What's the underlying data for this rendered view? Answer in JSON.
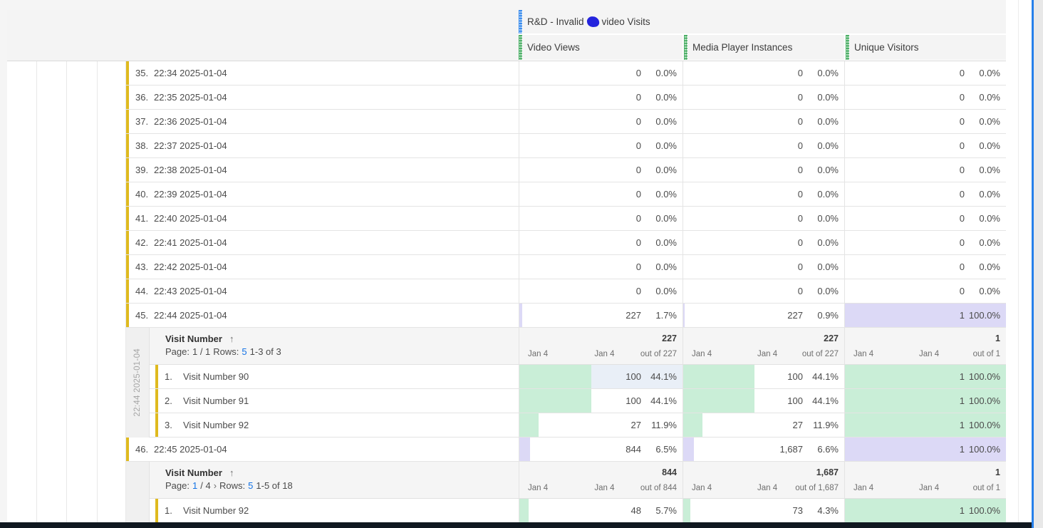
{
  "palette": {
    "accent_blue": "#2680eb",
    "accent_green": "#3aa757",
    "accent_yellow": "#dfba1f",
    "link_blue": "#1473e6",
    "fill_green": "#c9eed7",
    "fill_lavender": "#dcd9f6",
    "bg_selected": "#e9eff7",
    "redaction_blue": "#2424dd",
    "dark_bar": "#101820"
  },
  "header": {
    "segment_title_prefix": "R&D - Invalid",
    "segment_title_suffix": "video Visits",
    "columns": [
      "Video Views",
      "Media Player Instances",
      "Unique Visitors"
    ]
  },
  "rows": [
    {
      "type": "data",
      "num": "35.",
      "label": "22:34 2025-01-04",
      "cells": [
        {
          "value": "0",
          "pct": "0.0%"
        },
        {
          "value": "0",
          "pct": "0.0%"
        },
        {
          "value": "0",
          "pct": "0.0%"
        }
      ]
    },
    {
      "type": "data",
      "num": "36.",
      "label": "22:35 2025-01-04",
      "cells": [
        {
          "value": "0",
          "pct": "0.0%"
        },
        {
          "value": "0",
          "pct": "0.0%"
        },
        {
          "value": "0",
          "pct": "0.0%"
        }
      ]
    },
    {
      "type": "data",
      "num": "37.",
      "label": "22:36 2025-01-04",
      "cells": [
        {
          "value": "0",
          "pct": "0.0%"
        },
        {
          "value": "0",
          "pct": "0.0%"
        },
        {
          "value": "0",
          "pct": "0.0%"
        }
      ]
    },
    {
      "type": "data",
      "num": "38.",
      "label": "22:37 2025-01-04",
      "cells": [
        {
          "value": "0",
          "pct": "0.0%"
        },
        {
          "value": "0",
          "pct": "0.0%"
        },
        {
          "value": "0",
          "pct": "0.0%"
        }
      ]
    },
    {
      "type": "data",
      "num": "39.",
      "label": "22:38 2025-01-04",
      "cells": [
        {
          "value": "0",
          "pct": "0.0%"
        },
        {
          "value": "0",
          "pct": "0.0%"
        },
        {
          "value": "0",
          "pct": "0.0%"
        }
      ]
    },
    {
      "type": "data",
      "num": "40.",
      "label": "22:39 2025-01-04",
      "cells": [
        {
          "value": "0",
          "pct": "0.0%"
        },
        {
          "value": "0",
          "pct": "0.0%"
        },
        {
          "value": "0",
          "pct": "0.0%"
        }
      ]
    },
    {
      "type": "data",
      "num": "41.",
      "label": "22:40 2025-01-04",
      "cells": [
        {
          "value": "0",
          "pct": "0.0%"
        },
        {
          "value": "0",
          "pct": "0.0%"
        },
        {
          "value": "0",
          "pct": "0.0%"
        }
      ]
    },
    {
      "type": "data",
      "num": "42.",
      "label": "22:41 2025-01-04",
      "cells": [
        {
          "value": "0",
          "pct": "0.0%"
        },
        {
          "value": "0",
          "pct": "0.0%"
        },
        {
          "value": "0",
          "pct": "0.0%"
        }
      ]
    },
    {
      "type": "data",
      "num": "43.",
      "label": "22:42 2025-01-04",
      "cells": [
        {
          "value": "0",
          "pct": "0.0%"
        },
        {
          "value": "0",
          "pct": "0.0%"
        },
        {
          "value": "0",
          "pct": "0.0%"
        }
      ]
    },
    {
      "type": "data",
      "num": "44.",
      "label": "22:43 2025-01-04",
      "cells": [
        {
          "value": "0",
          "pct": "0.0%"
        },
        {
          "value": "0",
          "pct": "0.0%"
        },
        {
          "value": "0",
          "pct": "0.0%"
        }
      ]
    },
    {
      "type": "data",
      "num": "45.",
      "label": "22:44 2025-01-04",
      "cells": [
        {
          "value": "227",
          "pct": "1.7%",
          "bar": 0.017,
          "bar_color": "lavender"
        },
        {
          "value": "227",
          "pct": "0.9%",
          "bar": 0.009,
          "bar_color": "lavender"
        },
        {
          "value": "1",
          "pct": "100.0%",
          "bg": "lavender"
        }
      ]
    },
    {
      "type": "breakdown",
      "strip_label": "22:44 2025-01-04",
      "dimension": "Visit Number",
      "sort_icon": "↑",
      "pagination": [
        {
          "text": "Page:",
          "style": "plain"
        },
        {
          "text": "1 / 1",
          "style": "plain"
        },
        {
          "text": "Rows:",
          "style": "plain"
        },
        {
          "text": "5",
          "style": "link"
        },
        {
          "text": "1-3 of 3",
          "style": "plain"
        }
      ],
      "axis_labels": [
        "Jan 4",
        "Jan 4"
      ],
      "totals": [
        {
          "value": "227",
          "out_of": "out of 227"
        },
        {
          "value": "227",
          "out_of": "out of 227"
        },
        {
          "value": "1",
          "out_of": "out of 1"
        }
      ],
      "rows": [
        {
          "num": "1.",
          "label": "Visit Number 90",
          "cells": [
            {
              "value": "100",
              "pct": "44.1%",
              "bar": 0.441,
              "bar_color": "green",
              "bg": "selected"
            },
            {
              "value": "100",
              "pct": "44.1%",
              "bar": 0.441,
              "bar_color": "green"
            },
            {
              "value": "1",
              "pct": "100.0%",
              "bg": "green"
            }
          ]
        },
        {
          "num": "2.",
          "label": "Visit Number 91",
          "cells": [
            {
              "value": "100",
              "pct": "44.1%",
              "bar": 0.441,
              "bar_color": "green"
            },
            {
              "value": "100",
              "pct": "44.1%",
              "bar": 0.441,
              "bar_color": "green"
            },
            {
              "value": "1",
              "pct": "100.0%",
              "bg": "green"
            }
          ]
        },
        {
          "num": "3.",
          "label": "Visit Number 92",
          "cells": [
            {
              "value": "27",
              "pct": "11.9%",
              "bar": 0.119,
              "bar_color": "green"
            },
            {
              "value": "27",
              "pct": "11.9%",
              "bar": 0.119,
              "bar_color": "green"
            },
            {
              "value": "1",
              "pct": "100.0%",
              "bg": "green"
            }
          ]
        }
      ]
    },
    {
      "type": "data",
      "num": "46.",
      "label": "22:45 2025-01-04",
      "cells": [
        {
          "value": "844",
          "pct": "6.5%",
          "bar": 0.065,
          "bar_color": "lavender"
        },
        {
          "value": "1,687",
          "pct": "6.6%",
          "bar": 0.066,
          "bar_color": "lavender"
        },
        {
          "value": "1",
          "pct": "100.0%",
          "bg": "lavender"
        }
      ]
    },
    {
      "type": "breakdown",
      "strip_label": "",
      "dimension": "Visit Number",
      "sort_icon": "↑",
      "pagination": [
        {
          "text": "Page:",
          "style": "plain"
        },
        {
          "text": "1",
          "style": "link"
        },
        {
          "text": "/ 4",
          "style": "plain"
        },
        {
          "text": "›",
          "style": "chevron"
        },
        {
          "text": "Rows:",
          "style": "plain"
        },
        {
          "text": "5",
          "style": "link"
        },
        {
          "text": "1-5 of 18",
          "style": "plain"
        }
      ],
      "axis_labels": [
        "Jan 4",
        "Jan 4"
      ],
      "totals": [
        {
          "value": "844",
          "out_of": "out of 844"
        },
        {
          "value": "1,687",
          "out_of": "out of 1,687"
        },
        {
          "value": "1",
          "out_of": "out of 1"
        }
      ],
      "rows": [
        {
          "num": "1.",
          "label": "Visit Number 92",
          "cells": [
            {
              "value": "48",
              "pct": "5.7%",
              "bar": 0.057,
              "bar_color": "green"
            },
            {
              "value": "73",
              "pct": "4.3%",
              "bar": 0.043,
              "bar_color": "green"
            },
            {
              "value": "1",
              "pct": "100.0%",
              "bg": "green"
            }
          ]
        }
      ]
    }
  ]
}
